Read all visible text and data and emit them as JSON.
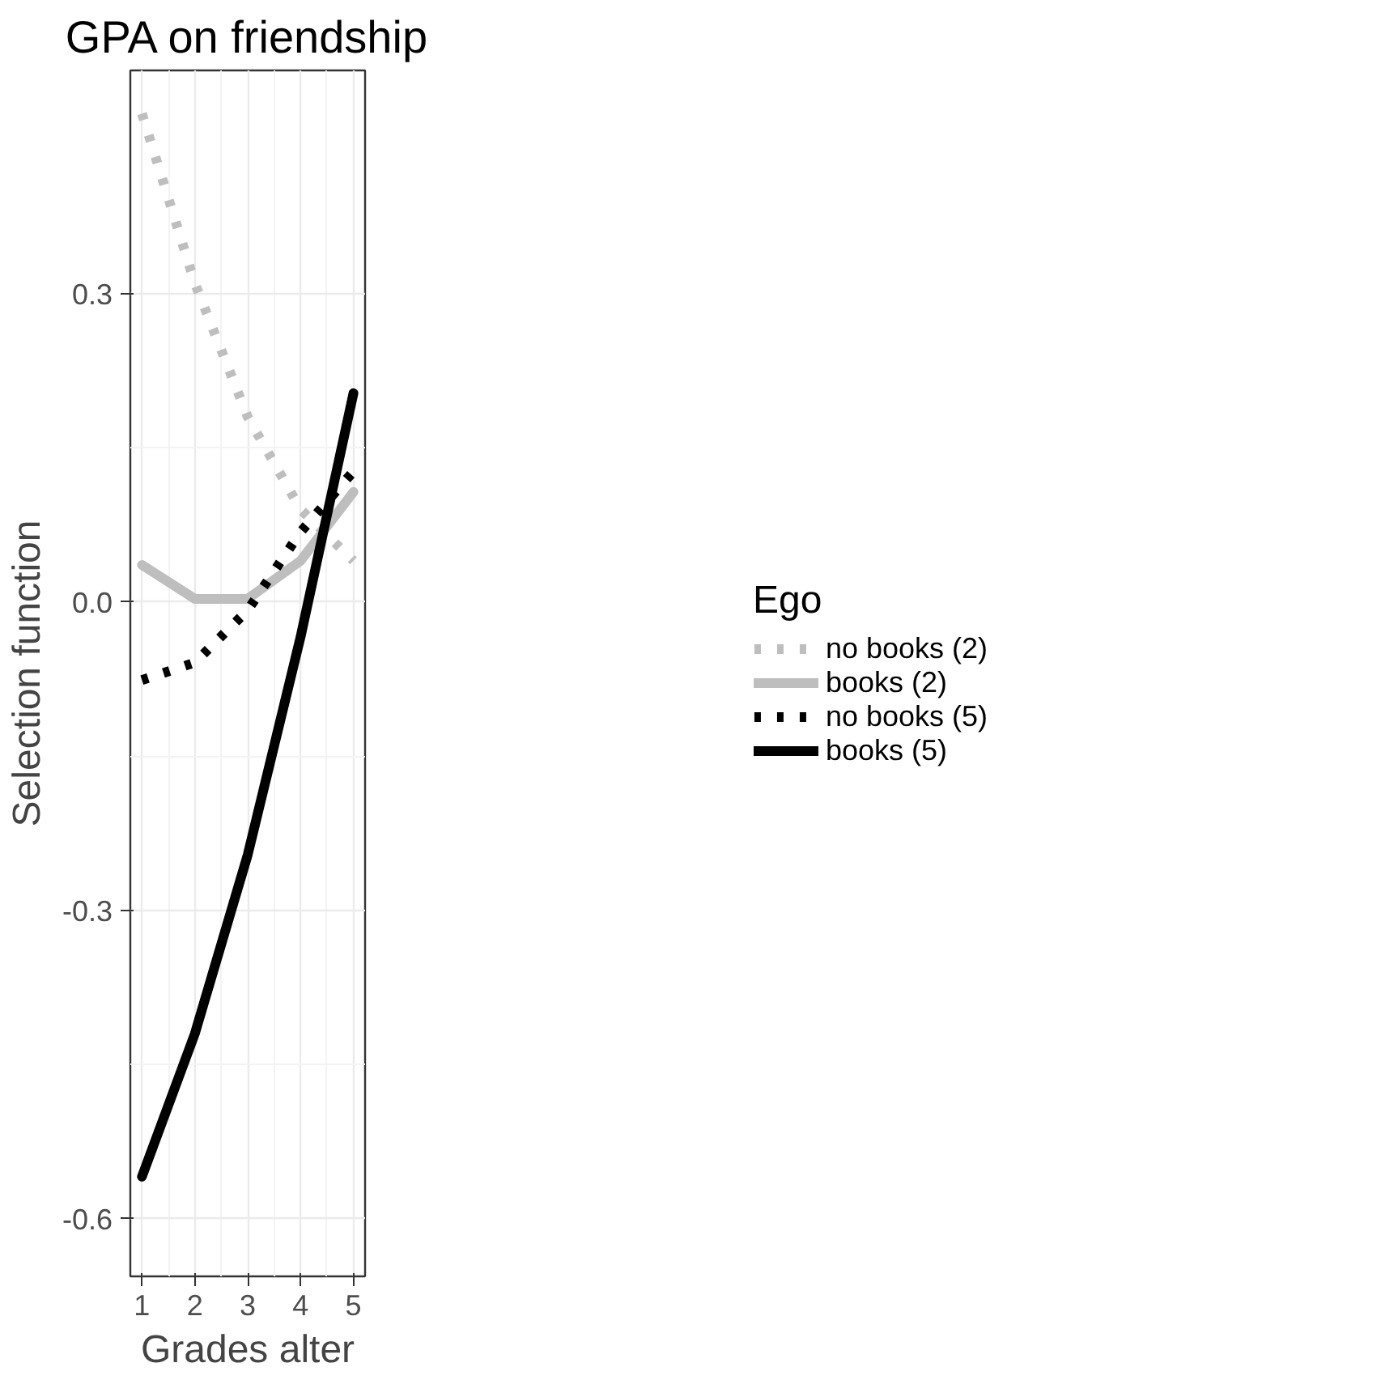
{
  "chart_data": {
    "type": "line",
    "title": "GPA on friendship",
    "xlabel": "Grades alter",
    "ylabel": "Selection function",
    "legend_title": "Ego",
    "x": [
      1,
      2,
      3,
      4,
      5
    ],
    "series": [
      {
        "name": "no books (2)",
        "color": "#bebebe",
        "line_style": "dotted",
        "values": [
          0.475,
          0.31,
          0.18,
          0.09,
          0.04
        ]
      },
      {
        "name": "books (2)",
        "color": "#bebebe",
        "line_style": "solid",
        "values": [
          0.036,
          0.003,
          0.003,
          0.04,
          0.107
        ]
      },
      {
        "name": "no books (5)",
        "color": "#000000",
        "line_style": "dotted",
        "values": [
          -0.076,
          -0.059,
          -0.008,
          0.068,
          0.127
        ]
      },
      {
        "name": "books (5)",
        "color": "#000000",
        "line_style": "solid",
        "values": [
          -0.559,
          -0.42,
          -0.246,
          -0.034,
          0.203
        ]
      }
    ],
    "xlim": [
      0.78,
      5.22
    ],
    "ylim": [
      -0.656,
      0.517
    ],
    "xticks": [
      1,
      2,
      3,
      4,
      5
    ],
    "yticks": [
      {
        "value": -0.6,
        "label": "-0.6"
      },
      {
        "value": -0.3,
        "label": "-0.3"
      },
      {
        "value": 0,
        "label": "0.0"
      },
      {
        "value": 0.3,
        "label": "0.3"
      }
    ],
    "grid": true,
    "legend": "right",
    "marker": "none"
  }
}
